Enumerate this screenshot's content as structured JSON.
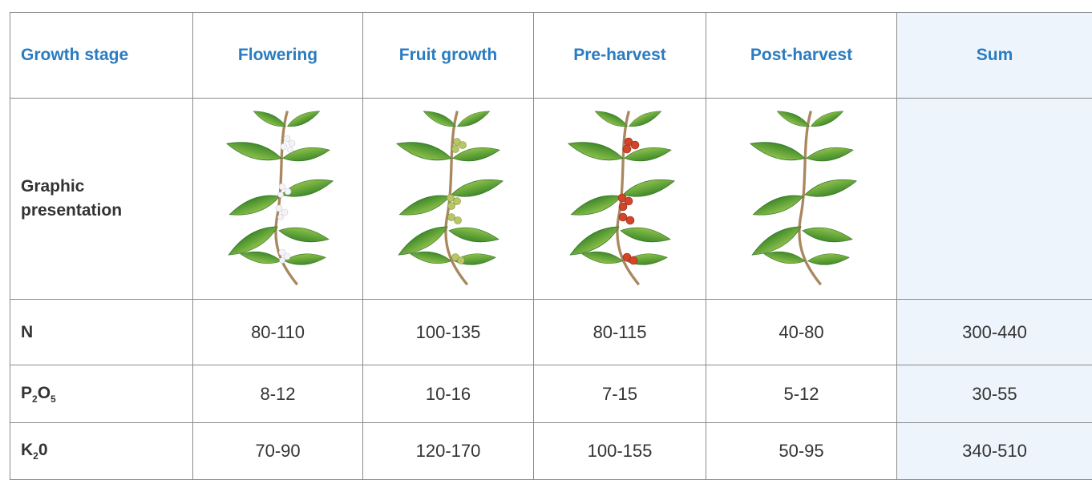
{
  "table": {
    "header": [
      "Growth stage",
      "Flowering",
      "Fruit growth",
      "Pre-harvest",
      "Post-harvest",
      "Sum"
    ],
    "graphic_label": "Graphic presentation",
    "rows": [
      {
        "label": [
          {
            "text": "N"
          }
        ],
        "cells": [
          "80-110",
          "100-135",
          "80-115",
          "40-80",
          "300-440"
        ]
      },
      {
        "label": [
          {
            "text": "P",
            "sub": "2"
          },
          {
            "text": "O",
            "sub": "5"
          }
        ],
        "cells": [
          "8-12",
          "10-16",
          "7-15",
          "5-12",
          "30-55"
        ]
      },
      {
        "label": [
          {
            "text": "K",
            "sub": "2"
          },
          {
            "text": "0"
          }
        ],
        "cells": [
          "70-90",
          "120-170",
          "100-155",
          "50-95",
          "340-510"
        ]
      }
    ]
  }
}
